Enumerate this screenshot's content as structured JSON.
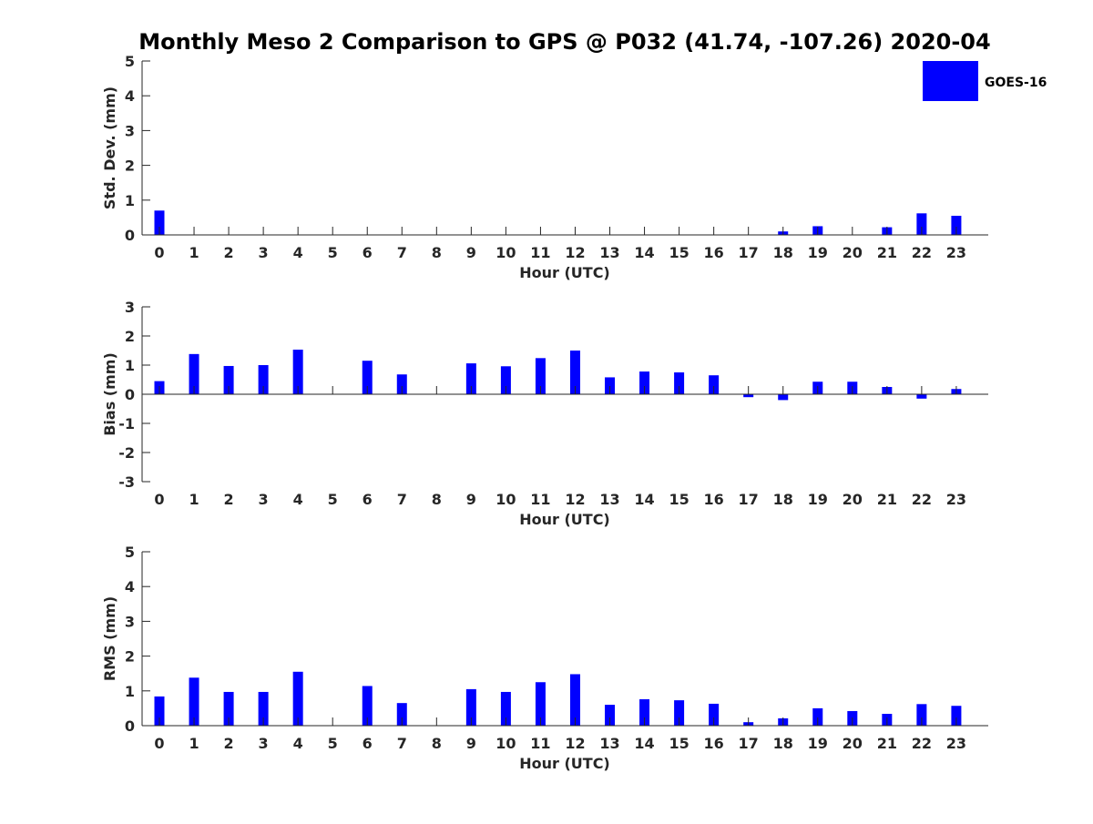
{
  "chart_data": {
    "type": "bar",
    "title": "Monthly Meso 2 Comparison to GPS @ P032 (41.74, -107.26) 2020-04",
    "series_name": "GOES-16",
    "bar_color": "#0000ff",
    "axis_color": "#262626",
    "panels": [
      {
        "ylabel": "Std. Dev. (mm)",
        "xlabel": "Hour (UTC)",
        "ylim": [
          0,
          5
        ],
        "yticks": [
          0,
          1,
          2,
          3,
          4,
          5
        ],
        "categories": [
          "0",
          "1",
          "2",
          "3",
          "4",
          "5",
          "6",
          "7",
          "8",
          "9",
          "10",
          "11",
          "12",
          "13",
          "14",
          "15",
          "16",
          "17",
          "18",
          "19",
          "20",
          "21",
          "22",
          "23"
        ],
        "values": [
          0.7,
          null,
          null,
          null,
          null,
          null,
          null,
          null,
          null,
          null,
          null,
          null,
          null,
          null,
          null,
          null,
          null,
          null,
          0.1,
          0.25,
          null,
          0.22,
          0.62,
          0.55
        ]
      },
      {
        "ylabel": "Bias (mm)",
        "xlabel": "Hour (UTC)",
        "ylim": [
          -3,
          3
        ],
        "yticks": [
          -3,
          -2,
          -1,
          0,
          1,
          2,
          3
        ],
        "categories": [
          "0",
          "1",
          "2",
          "3",
          "4",
          "5",
          "6",
          "7",
          "8",
          "9",
          "10",
          "11",
          "12",
          "13",
          "14",
          "15",
          "16",
          "17",
          "18",
          "19",
          "20",
          "21",
          "22",
          "23"
        ],
        "values": [
          0.45,
          1.38,
          0.97,
          1.0,
          1.53,
          null,
          1.15,
          0.68,
          null,
          1.06,
          0.96,
          1.24,
          1.5,
          0.58,
          0.78,
          0.75,
          0.65,
          -0.1,
          -0.2,
          0.43,
          0.43,
          0.25,
          -0.15,
          0.18
        ]
      },
      {
        "ylabel": "RMS (mm)",
        "xlabel": "Hour (UTC)",
        "ylim": [
          0,
          5
        ],
        "yticks": [
          0,
          1,
          2,
          3,
          4,
          5
        ],
        "categories": [
          "0",
          "1",
          "2",
          "3",
          "4",
          "5",
          "6",
          "7",
          "8",
          "9",
          "10",
          "11",
          "12",
          "13",
          "14",
          "15",
          "16",
          "17",
          "18",
          "19",
          "20",
          "21",
          "22",
          "23"
        ],
        "values": [
          0.84,
          1.38,
          0.97,
          0.97,
          1.55,
          null,
          1.14,
          0.65,
          null,
          1.05,
          0.97,
          1.25,
          1.48,
          0.6,
          0.76,
          0.73,
          0.63,
          0.1,
          0.21,
          0.5,
          0.42,
          0.34,
          0.62,
          0.57
        ]
      }
    ]
  }
}
